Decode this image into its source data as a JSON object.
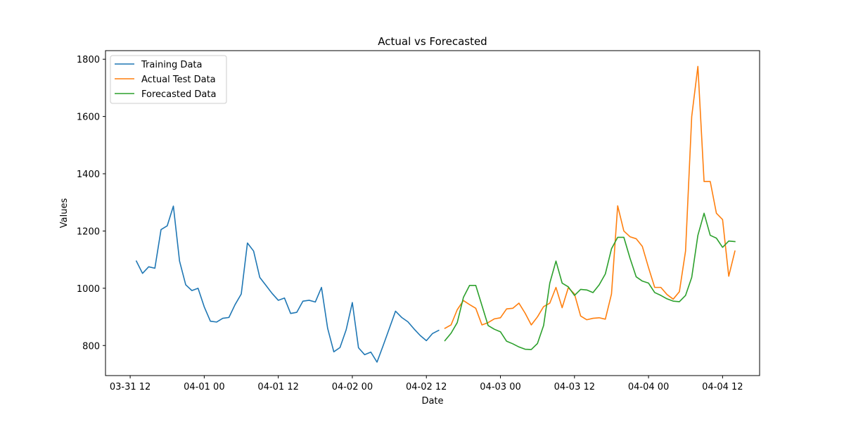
{
  "chart_data": {
    "type": "line",
    "title": "Actual vs Forecasted",
    "xlabel": "Date",
    "ylabel": "Values",
    "x_range": [
      "2023-03-31T08:00",
      "2023-04-04T18:00"
    ],
    "ylim": [
      695,
      1830
    ],
    "x_ticks": [
      {
        "t": "2023-03-31T12:00",
        "label": "03-31 12"
      },
      {
        "t": "2023-04-01T00:00",
        "label": "04-01 00"
      },
      {
        "t": "2023-04-01T12:00",
        "label": "04-01 12"
      },
      {
        "t": "2023-04-02T00:00",
        "label": "04-02 00"
      },
      {
        "t": "2023-04-02T12:00",
        "label": "04-02 12"
      },
      {
        "t": "2023-04-03T00:00",
        "label": "04-03 00"
      },
      {
        "t": "2023-04-03T12:00",
        "label": "04-03 12"
      },
      {
        "t": "2023-04-04T00:00",
        "label": "04-04 00"
      },
      {
        "t": "2023-04-04T12:00",
        "label": "04-04 12"
      }
    ],
    "y_ticks": [
      {
        "v": 800,
        "label": "800"
      },
      {
        "v": 1000,
        "label": "1000"
      },
      {
        "v": 1200,
        "label": "1200"
      },
      {
        "v": 1400,
        "label": "1400"
      },
      {
        "v": 1600,
        "label": "1600"
      },
      {
        "v": 1800,
        "label": "1800"
      }
    ],
    "grid": false,
    "legend_position": "top-left",
    "series": [
      {
        "name": "Training Data",
        "color": "#1f77b4",
        "start": "2023-03-31T13:00",
        "step_hours": 1,
        "values": [
          1095,
          1052,
          1075,
          1070,
          1205,
          1218,
          1287,
          1095,
          1012,
          992,
          1000,
          935,
          885,
          882,
          895,
          898,
          943,
          980,
          1158,
          1130,
          1038,
          1010,
          982,
          958,
          966,
          912,
          916,
          955,
          958,
          952,
          1003,
          860,
          778,
          793,
          855,
          950,
          792,
          768,
          777,
          742,
          800,
          860,
          920,
          898,
          883,
          858,
          835,
          817,
          842,
          853
        ]
      },
      {
        "name": "Actual Test Data",
        "color": "#ff7f0e",
        "start": "2023-04-02T15:00",
        "step_hours": 1,
        "values": [
          860,
          872,
          925,
          957,
          943,
          930,
          872,
          880,
          893,
          897,
          928,
          930,
          948,
          913,
          872,
          900,
          936,
          948,
          1003,
          932,
          1002,
          980,
          903,
          890,
          895,
          897,
          892,
          980,
          1288,
          1200,
          1180,
          1173,
          1146,
          1072,
          1003,
          1003,
          978,
          962,
          988,
          1130,
          1600,
          1775,
          1373,
          1373,
          1262,
          1240,
          1042,
          1130
        ]
      },
      {
        "name": "Forecasted Data",
        "color": "#2ca02c",
        "start": "2023-04-02T15:00",
        "step_hours": 1,
        "values": [
          817,
          843,
          880,
          968,
          1010,
          1010,
          940,
          870,
          857,
          848,
          815,
          806,
          795,
          787,
          786,
          807,
          870,
          1018,
          1095,
          1018,
          1005,
          975,
          996,
          994,
          985,
          1012,
          1050,
          1138,
          1178,
          1178,
          1105,
          1040,
          1025,
          1018,
          985,
          975,
          963,
          955,
          953,
          975,
          1038,
          1185,
          1262,
          1185,
          1175,
          1143,
          1165,
          1163
        ]
      }
    ]
  }
}
